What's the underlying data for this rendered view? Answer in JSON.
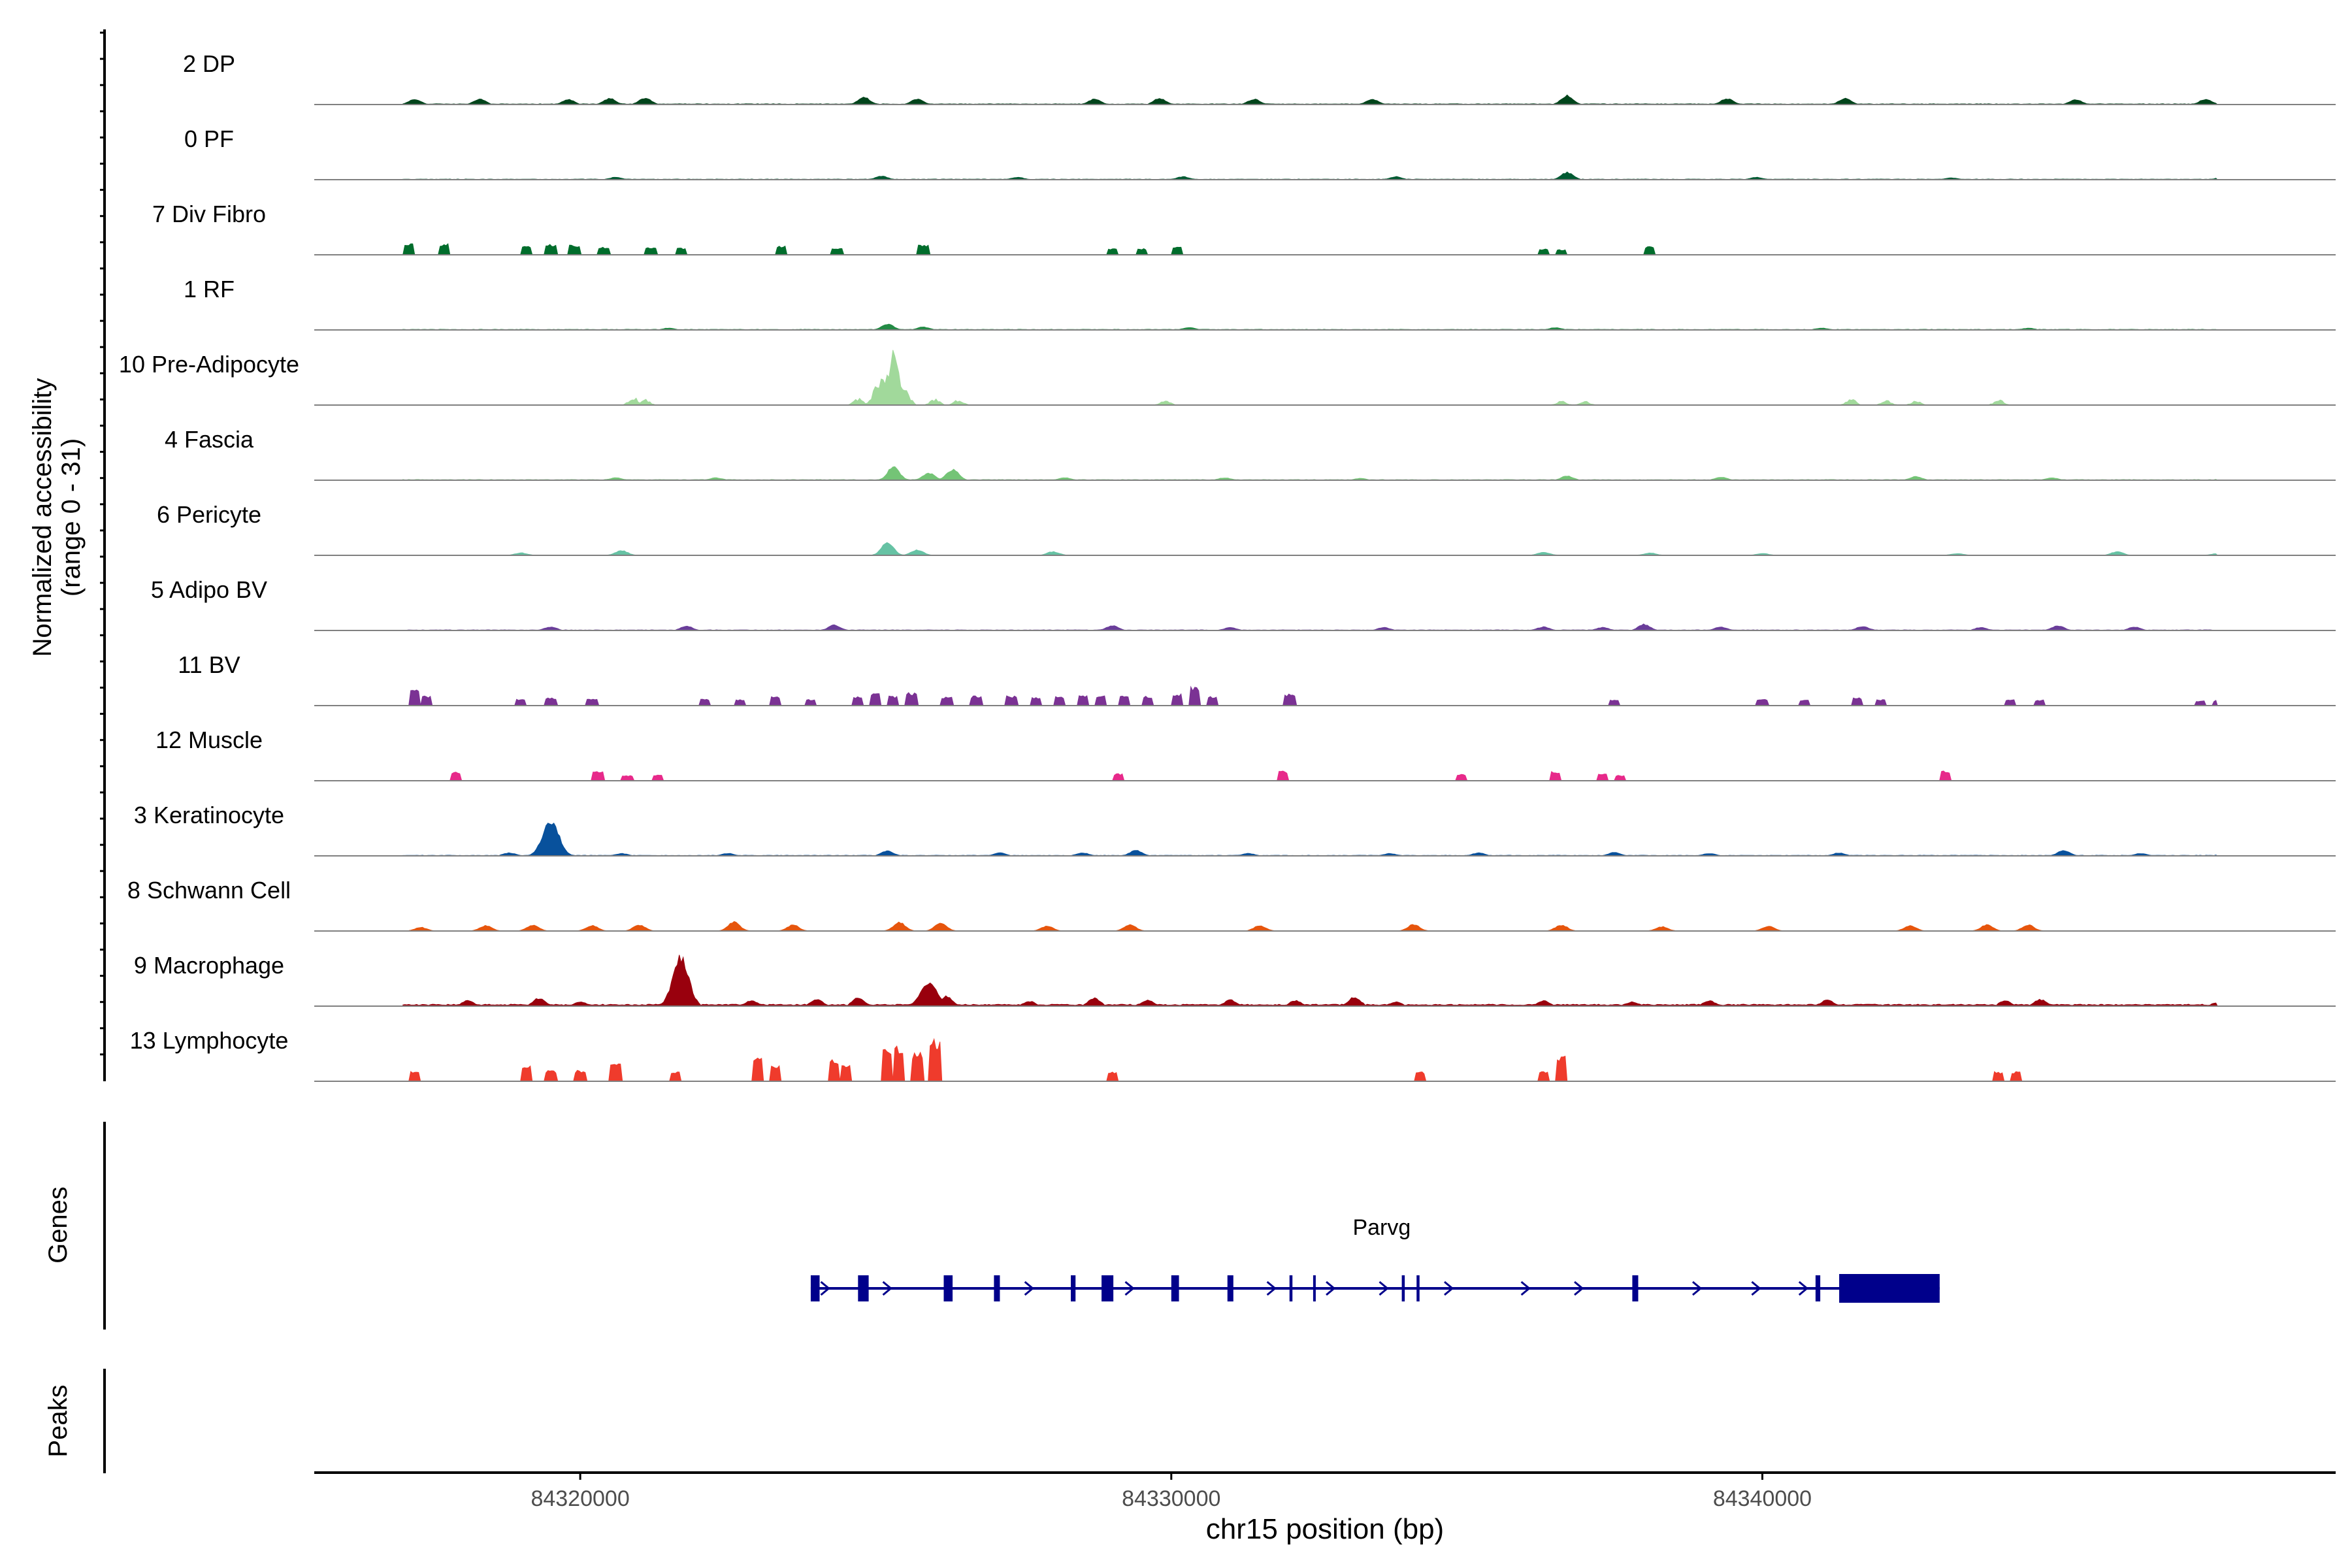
{
  "chart_data": {
    "type": "area",
    "title": "",
    "ylabel_line1": "Normalized accessibility",
    "ylabel_line2": "(range 0 - 31)",
    "ylim": [
      0,
      31
    ],
    "xlabel": "chr15 position (bp)",
    "xlim": [
      84315500,
      84349700
    ],
    "xticks": [
      84320000,
      84330000,
      84340000
    ],
    "xtick_labels": [
      "84320000",
      "84330000",
      "84340000"
    ],
    "genes_label": "Genes",
    "peaks_label": "Peaks",
    "gene": {
      "name": "Parvg",
      "color": "#00008B",
      "start": 84323900,
      "end": 84343000,
      "strand": "+",
      "exons": [
        [
          84323900,
          84324050
        ],
        [
          84324700,
          84324880
        ],
        [
          84326150,
          84326300
        ],
        [
          84327000,
          84327100
        ],
        [
          84328300,
          84328380
        ],
        [
          84328820,
          84329020
        ],
        [
          84330000,
          84330130
        ],
        [
          84330950,
          84331050
        ],
        [
          84332000,
          84332050
        ],
        [
          84332400,
          84332430
        ],
        [
          84333900,
          84333950
        ],
        [
          84334150,
          84334200
        ],
        [
          84337800,
          84337900
        ],
        [
          84340900,
          84340980
        ],
        [
          84341300,
          84343000
        ]
      ],
      "arrows": [
        84324150,
        84325200,
        84327600,
        84329300,
        84331700,
        84332700,
        84333600,
        84334700,
        84336000,
        84336900,
        84338900,
        84339900,
        84340700
      ]
    },
    "series": [
      {
        "name": "2 DP",
        "color": "#00441B",
        "style": "smooth",
        "baseline": 0.12,
        "peaks": [
          [
            84317200,
            0.9
          ],
          [
            84318300,
            0.9
          ],
          [
            84319800,
            0.8
          ],
          [
            84320500,
            1.0
          ],
          [
            84321100,
            1.1
          ],
          [
            84324800,
            1.2
          ],
          [
            84325700,
            0.9
          ],
          [
            84328700,
            0.9
          ],
          [
            84329800,
            1.0
          ],
          [
            84331400,
            0.9
          ],
          [
            84333400,
            0.9
          ],
          [
            84336700,
            1.5
          ],
          [
            84339400,
            1.0
          ],
          [
            84341400,
            1.0
          ],
          [
            84345300,
            0.8
          ],
          [
            84347500,
            0.9
          ]
        ]
      },
      {
        "name": "0 PF",
        "color": "#005A32",
        "style": "smooth",
        "baseline": 0.1,
        "peaks": [
          [
            84320600,
            0.4
          ],
          [
            84325100,
            0.6
          ],
          [
            84327400,
            0.4
          ],
          [
            84330200,
            0.5
          ],
          [
            84333800,
            0.5
          ],
          [
            84336700,
            1.2
          ],
          [
            84339900,
            0.4
          ],
          [
            84343200,
            0.3
          ],
          [
            84347800,
            0.5
          ]
        ]
      },
      {
        "name": "7 Div Fibro",
        "color": "#006D2C",
        "style": "blocks",
        "baseline": 0,
        "peaks": [
          [
            84317100,
            1.8
          ],
          [
            84317700,
            1.7
          ],
          [
            84319100,
            1.4
          ],
          [
            84319500,
            1.6
          ],
          [
            84319900,
            1.5
          ],
          [
            84320400,
            1.2
          ],
          [
            84321200,
            1.2
          ],
          [
            84321700,
            1.1
          ],
          [
            84323400,
            1.4
          ],
          [
            84324350,
            1.1
          ],
          [
            84325800,
            1.5
          ],
          [
            84329000,
            1.0
          ],
          [
            84329500,
            1.0
          ],
          [
            84330100,
            1.3
          ],
          [
            84336300,
            0.9
          ],
          [
            84336600,
            0.8
          ],
          [
            84338100,
            1.3
          ]
        ]
      },
      {
        "name": "1 RF",
        "color": "#238B45",
        "style": "smooth",
        "baseline": 0.1,
        "peaks": [
          [
            84325200,
            1.0
          ],
          [
            84325800,
            0.5
          ],
          [
            84321500,
            0.3
          ],
          [
            84330300,
            0.4
          ],
          [
            84336500,
            0.4
          ],
          [
            84341000,
            0.3
          ],
          [
            84344500,
            0.3
          ]
        ]
      },
      {
        "name": "10 Pre-Adipocyte",
        "color": "#A1D99B",
        "style": "spiky",
        "baseline": 0,
        "peaks": [
          [
            84320900,
            1.3
          ],
          [
            84321100,
            0.9
          ],
          [
            84324700,
            1.1
          ],
          [
            84325100,
            5.0
          ],
          [
            84325300,
            9.0
          ],
          [
            84325500,
            2.5
          ],
          [
            84326000,
            1.0
          ],
          [
            84326400,
            0.9
          ],
          [
            84329900,
            0.8
          ],
          [
            84336600,
            0.7
          ],
          [
            84337000,
            0.6
          ],
          [
            84341500,
            1.1
          ],
          [
            84342100,
            0.8
          ],
          [
            84342600,
            0.7
          ],
          [
            84344000,
            0.9
          ]
        ]
      },
      {
        "name": "4 Fascia",
        "color": "#74C476",
        "style": "smooth",
        "baseline": 0.1,
        "peaks": [
          [
            84325300,
            2.2
          ],
          [
            84326300,
            1.8
          ],
          [
            84325900,
            1.2
          ],
          [
            84320600,
            0.4
          ],
          [
            84322300,
            0.4
          ],
          [
            84328200,
            0.4
          ],
          [
            84330900,
            0.4
          ],
          [
            84333200,
            0.3
          ],
          [
            84336700,
            0.7
          ],
          [
            84339300,
            0.5
          ],
          [
            84342600,
            0.6
          ],
          [
            84344900,
            0.4
          ],
          [
            84347800,
            0.3
          ]
        ]
      },
      {
        "name": "6 Pericyte",
        "color": "#66C2A4",
        "style": "smooth",
        "baseline": 0.05,
        "peaks": [
          [
            84325200,
            2.2
          ],
          [
            84325700,
            0.9
          ],
          [
            84320700,
            0.8
          ],
          [
            84319000,
            0.4
          ],
          [
            84328000,
            0.6
          ],
          [
            84336300,
            0.5
          ],
          [
            84338100,
            0.4
          ],
          [
            84340000,
            0.3
          ],
          [
            84343300,
            0.3
          ],
          [
            84346000,
            0.6
          ],
          [
            84347700,
            0.3
          ]
        ]
      },
      {
        "name": "5 Adipo BV",
        "color": "#6A3D9A",
        "style": "smooth",
        "baseline": 0.1,
        "peaks": [
          [
            84319500,
            0.6
          ],
          [
            84321800,
            0.7
          ],
          [
            84324300,
            0.9
          ],
          [
            84329000,
            0.8
          ],
          [
            84331000,
            0.5
          ],
          [
            84333600,
            0.5
          ],
          [
            84336300,
            0.6
          ],
          [
            84337300,
            0.5
          ],
          [
            84338000,
            1.0
          ],
          [
            84339300,
            0.6
          ],
          [
            84341700,
            0.7
          ],
          [
            84343700,
            0.5
          ],
          [
            84345000,
            0.8
          ],
          [
            84346300,
            0.6
          ]
        ]
      },
      {
        "name": "11 BV",
        "color": "#7B3294",
        "style": "blocks",
        "baseline": 0,
        "peaks": [
          [
            84317200,
            2.5
          ],
          [
            84317400,
            1.5
          ],
          [
            84319000,
            1.0
          ],
          [
            84319500,
            1.2
          ],
          [
            84320200,
            1.0
          ],
          [
            84322100,
            1.0
          ],
          [
            84322700,
            1.0
          ],
          [
            84323300,
            1.5
          ],
          [
            84323900,
            1.0
          ],
          [
            84324700,
            1.4
          ],
          [
            84325000,
            2.1
          ],
          [
            84325300,
            1.5
          ],
          [
            84325600,
            2.0
          ],
          [
            84326200,
            1.4
          ],
          [
            84326700,
            1.5
          ],
          [
            84327300,
            1.5
          ],
          [
            84327700,
            1.3
          ],
          [
            84328100,
            1.4
          ],
          [
            84328500,
            1.6
          ],
          [
            84328800,
            1.5
          ],
          [
            84329200,
            1.7
          ],
          [
            84329600,
            1.5
          ],
          [
            84330100,
            1.9
          ],
          [
            84330400,
            3.0
          ],
          [
            84330700,
            1.5
          ],
          [
            84332000,
            1.8
          ],
          [
            84337500,
            0.9
          ],
          [
            84340000,
            1.0
          ],
          [
            84340700,
            0.9
          ],
          [
            84341600,
            1.2
          ],
          [
            84342000,
            1.0
          ],
          [
            84344200,
            0.9
          ],
          [
            84344700,
            0.9
          ],
          [
            84347400,
            0.8
          ],
          [
            84347700,
            0.8
          ]
        ]
      },
      {
        "name": "12 Muscle",
        "color": "#E7298A",
        "style": "blocks",
        "baseline": 0,
        "peaks": [
          [
            84317900,
            1.4
          ],
          [
            84320300,
            1.5
          ],
          [
            84320800,
            0.8
          ],
          [
            84321300,
            0.9
          ],
          [
            84329100,
            1.1
          ],
          [
            84331900,
            1.5
          ],
          [
            84334900,
            1.0
          ],
          [
            84336500,
            1.4
          ],
          [
            84337300,
            1.1
          ],
          [
            84337600,
            0.9
          ],
          [
            84343100,
            1.5
          ]
        ]
      },
      {
        "name": "3 Keratinocyte",
        "color": "#08519C",
        "style": "smooth",
        "baseline": 0.1,
        "peaks": [
          [
            84319500,
            6.0
          ],
          [
            84318800,
            0.5
          ],
          [
            84320700,
            0.4
          ],
          [
            84322500,
            0.4
          ],
          [
            84325200,
            0.8
          ],
          [
            84327100,
            0.5
          ],
          [
            84328500,
            0.5
          ],
          [
            84329400,
            0.9
          ],
          [
            84331300,
            0.4
          ],
          [
            84333700,
            0.4
          ],
          [
            84335200,
            0.5
          ],
          [
            84337500,
            0.6
          ],
          [
            84339100,
            0.4
          ],
          [
            84341300,
            0.5
          ],
          [
            84345100,
            0.9
          ],
          [
            84346400,
            0.4
          ],
          [
            84347800,
            0.3
          ]
        ]
      },
      {
        "name": "8 Schwann Cell",
        "color": "#E6550D",
        "style": "smooth",
        "baseline": 0,
        "peaks": [
          [
            84317300,
            0.6
          ],
          [
            84318400,
            0.9
          ],
          [
            84319200,
            1.0
          ],
          [
            84320200,
            0.9
          ],
          [
            84321000,
            1.0
          ],
          [
            84322600,
            1.5
          ],
          [
            84323600,
            1.0
          ],
          [
            84325400,
            1.4
          ],
          [
            84326100,
            1.3
          ],
          [
            84327900,
            0.8
          ],
          [
            84329300,
            1.0
          ],
          [
            84331500,
            0.9
          ],
          [
            84334100,
            1.1
          ],
          [
            84336600,
            1.0
          ],
          [
            84338300,
            0.7
          ],
          [
            84340100,
            0.8
          ],
          [
            84342500,
            0.9
          ],
          [
            84343800,
            1.0
          ],
          [
            84344500,
            1.0
          ]
        ]
      },
      {
        "name": "9 Macrophage",
        "color": "#99000D",
        "style": "smooth",
        "baseline": 0.3,
        "peaks": [
          [
            84321700,
            8.0
          ],
          [
            84325900,
            4.0
          ],
          [
            84326200,
            1.6
          ],
          [
            84318100,
            0.9
          ],
          [
            84319300,
            1.3
          ],
          [
            84320000,
            0.7
          ],
          [
            84322900,
            0.9
          ],
          [
            84324000,
            1.1
          ],
          [
            84324700,
            1.4
          ],
          [
            84327600,
            0.8
          ],
          [
            84328700,
            1.3
          ],
          [
            84329600,
            1.0
          ],
          [
            84331000,
            1.0
          ],
          [
            84332100,
            0.9
          ],
          [
            84333100,
            1.5
          ],
          [
            84333800,
            0.7
          ],
          [
            84336300,
            0.9
          ],
          [
            84337800,
            0.7
          ],
          [
            84339100,
            0.9
          ],
          [
            84341100,
            1.0
          ],
          [
            84344100,
            0.9
          ],
          [
            84344700,
            1.1
          ],
          [
            84347700,
            0.6
          ]
        ]
      },
      {
        "name": "13 Lymphocyte",
        "color": "#EF3B2C",
        "style": "blocks",
        "baseline": 0,
        "peaks": [
          [
            84317200,
            1.5
          ],
          [
            84319100,
            2.5
          ],
          [
            84319500,
            1.7
          ],
          [
            84320000,
            1.7
          ],
          [
            84320600,
            3.0
          ],
          [
            84321600,
            1.5
          ],
          [
            84323000,
            4.0
          ],
          [
            84323300,
            2.5
          ],
          [
            84324300,
            3.5
          ],
          [
            84324500,
            2.5
          ],
          [
            84325200,
            5.0
          ],
          [
            84325400,
            5.5
          ],
          [
            84325700,
            4.5
          ],
          [
            84326000,
            6.5
          ],
          [
            84329000,
            1.5
          ],
          [
            84334200,
            1.5
          ],
          [
            84336300,
            1.5
          ],
          [
            84336600,
            4.0
          ],
          [
            84344000,
            1.5
          ],
          [
            84344300,
            1.5
          ]
        ]
      }
    ]
  }
}
